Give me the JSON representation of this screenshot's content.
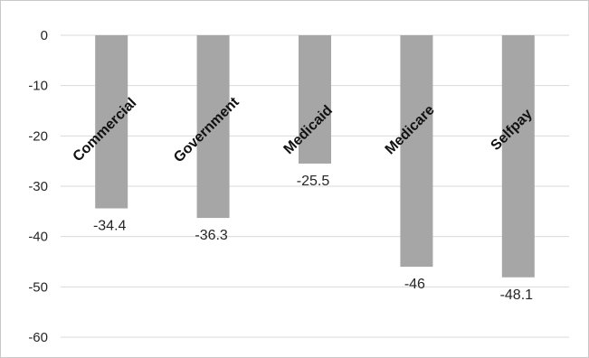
{
  "chart_data": {
    "type": "bar",
    "title": "",
    "xlabel": "",
    "ylabel": "",
    "categories": [
      "Commercial",
      "Government",
      "Medicaid",
      "Medicare",
      "Selfpay"
    ],
    "values": [
      -34.4,
      -36.3,
      -25.5,
      -46,
      -48.1
    ],
    "data_labels": [
      "-34.4",
      "-36.3",
      "-25.5",
      "-46",
      "-48.1"
    ],
    "ylim": [
      -60,
      0
    ],
    "yticks": [
      0,
      -10,
      -20,
      -30,
      -40,
      -50,
      -60
    ],
    "ytick_labels": [
      "0",
      "-10",
      "-20",
      "-30",
      "-40",
      "-50",
      "-60"
    ],
    "grid": true,
    "legend": "none",
    "category_label_placement": "rotated near zero line",
    "colors": {
      "bar": "#a6a6a6",
      "grid": "#d9d9d9",
      "text": "#262626"
    }
  }
}
